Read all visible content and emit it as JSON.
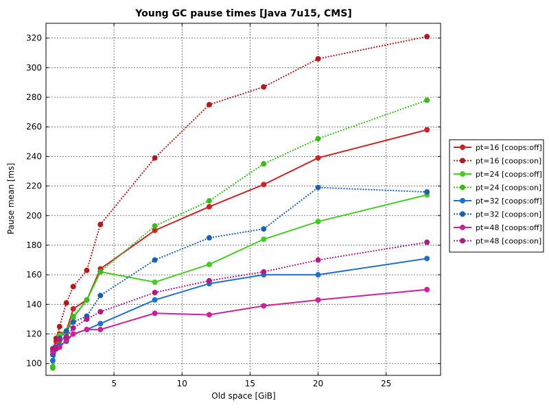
{
  "chart_data": {
    "type": "line",
    "title": "Young GC pause times [Java 7u15, CMS]",
    "xlabel": "Old space [GiB]",
    "ylabel": "Pause mean [ms]",
    "xlim": [
      0,
      29
    ],
    "ylim": [
      92,
      330
    ],
    "xticks": [
      5,
      10,
      15,
      20,
      25
    ],
    "yticks": [
      100,
      120,
      140,
      160,
      180,
      200,
      220,
      240,
      260,
      280,
      300,
      320
    ],
    "grid": true,
    "legend_position": "right",
    "x": [
      0.5,
      0.75,
      1,
      1.5,
      2,
      3,
      4,
      8,
      12,
      16,
      20,
      28
    ],
    "series": [
      {
        "name": "pt=16 [coops:off]",
        "color": "#cc2424",
        "style": "solid",
        "values": [
          110,
          115,
          120,
          122,
          137,
          143,
          164,
          190,
          206,
          221,
          239,
          258
        ]
      },
      {
        "name": "pt=16 [coops:on]",
        "color": "#b01c1c",
        "style": "dotted",
        "values": [
          110,
          117,
          125,
          141,
          152,
          163,
          194,
          239,
          275,
          287,
          306,
          321
        ]
      },
      {
        "name": "pt=24 [coops:off]",
        "color": "#44cc22",
        "style": "solid",
        "values": [
          98,
          110,
          119,
          122,
          131,
          143,
          162,
          155,
          167,
          184,
          196,
          214
        ]
      },
      {
        "name": "pt=24 [coops:on]",
        "color": "#3cbc1c",
        "style": "dotted",
        "values": [
          97,
          110,
          113,
          120,
          132,
          143,
          162,
          193,
          210,
          235,
          252,
          278
        ]
      },
      {
        "name": "pt=32 [coops:off]",
        "color": "#1f6fcc",
        "style": "solid",
        "values": [
          102,
          110,
          112,
          115,
          120,
          123,
          127,
          143,
          154,
          160,
          160,
          171
        ]
      },
      {
        "name": "pt=32 [coops:on]",
        "color": "#1a5fb4",
        "style": "dotted",
        "values": [
          106,
          111,
          117,
          122,
          128,
          132,
          146,
          170,
          185,
          191,
          219,
          216
        ]
      },
      {
        "name": "pt=48 [coops:off]",
        "color": "#cc2299",
        "style": "solid",
        "values": [
          108,
          110,
          111,
          116,
          120,
          123,
          123,
          134,
          133,
          139,
          143,
          150
        ]
      },
      {
        "name": "pt=48 [coops:on]",
        "color": "#b01c86",
        "style": "dotted",
        "values": [
          110,
          110,
          116,
          118,
          124,
          130,
          135,
          148,
          156,
          162,
          170,
          182
        ]
      }
    ]
  }
}
